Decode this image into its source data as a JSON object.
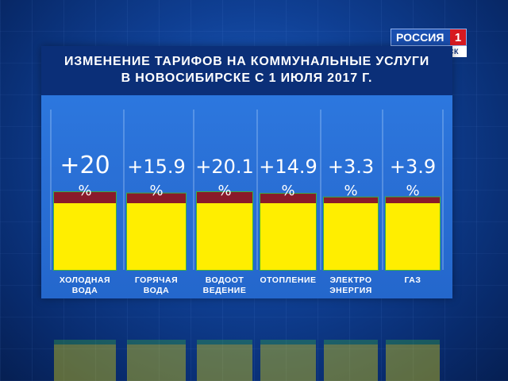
{
  "logo": {
    "channel": "РОССИЯ",
    "number": "1",
    "region": "НОВОСИБИРСК"
  },
  "title": {
    "line1": "ИЗМЕНЕНИЕ ТАРИФОВ НА КОММУНАЛЬНЫЕ УСЛУГИ",
    "line2": "В НОВОСИБИРСКЕ  С 1 ИЮЛЯ 2017 Г."
  },
  "colors": {
    "bar_fill": "#ffee00",
    "bar_top": "#8a1a2a",
    "bar_border": "#3cb043",
    "value_text": "#ffffff",
    "label_text": "#ffffff"
  },
  "chart_data": {
    "type": "bar",
    "title": "ИЗМЕНЕНИЕ ТАРИФОВ НА КОММУНАЛЬНЫЕ УСЛУГИ В НОВОСИБИРСКЕ  С 1 ИЮЛЯ 2017 Г.",
    "categories": [
      [
        "ХОЛОДНАЯ",
        "ВОДА"
      ],
      [
        "ГОРЯЧАЯ",
        "ВОДА"
      ],
      [
        "ВОДООТ",
        "ВЕДЕНИЕ"
      ],
      [
        "ОТОПЛЕНИЕ"
      ],
      [
        "ЭЛЕКТРО",
        "ЭНЕРГИЯ"
      ],
      [
        "ГАЗ"
      ]
    ],
    "values": [
      20,
      15.9,
      20.1,
      14.9,
      3.3,
      3.9
    ],
    "value_labels": [
      "+20",
      "+15.9",
      "+20.1",
      "+14.9",
      "+3.3",
      "+3.9"
    ],
    "unit": "%",
    "grid": false,
    "legend": "none"
  }
}
